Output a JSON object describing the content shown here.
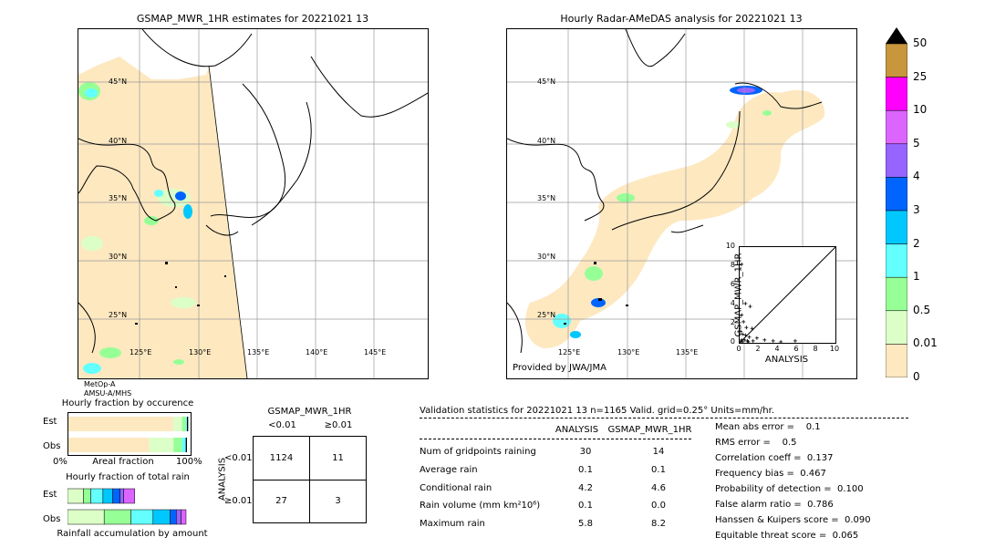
{
  "left_map": {
    "title": "GSMAP_MWR_1HR estimates for 20221021 13",
    "lat_labels": [
      "45°N",
      "40°N",
      "35°N",
      "30°N",
      "25°N"
    ],
    "lon_labels": [
      "125°E",
      "130°E",
      "135°E",
      "140°E",
      "145°E"
    ],
    "satellite_note": [
      "MetOp-A",
      "AMSU-A/MHS"
    ]
  },
  "right_map": {
    "title": "Hourly Radar-AMeDAS analysis for 20221021 13",
    "lat_labels": [
      "45°N",
      "40°N",
      "35°N",
      "30°N",
      "25°N"
    ],
    "lon_labels": [
      "125°E",
      "130°E",
      "135°E"
    ],
    "provider": "Provided by JWA/JMA"
  },
  "colorbar": {
    "labels": [
      "50",
      "25",
      "10",
      "5",
      "4",
      "3",
      "2",
      "1",
      "0.5",
      "0.01",
      "0"
    ],
    "colors": [
      "#c8963c",
      "#ff00ff",
      "#dc64ff",
      "#9664ff",
      "#0064ff",
      "#00c8ff",
      "#64ffff",
      "#96ff96",
      "#dcffc8",
      "#fde8c0"
    ],
    "over_color": "#000000"
  },
  "chart_data": [
    {
      "type": "scatter",
      "xlabel": "ANALYSIS",
      "ylabel": "GSMAP_MWR_1HR",
      "xlim": [
        0,
        10
      ],
      "ylim": [
        0,
        10
      ],
      "x_ticks": [
        "0",
        "2",
        "4",
        "6",
        "8",
        "10"
      ],
      "y_ticks": [
        "0",
        "2",
        "4",
        "6",
        "8",
        "10"
      ],
      "points": [
        [
          0.6,
          4.1
        ],
        [
          1.1,
          3.8
        ],
        [
          0.2,
          2.9
        ],
        [
          0.4,
          2.2
        ],
        [
          0.7,
          1.6
        ],
        [
          1.3,
          1.5
        ],
        [
          0.1,
          1.2
        ],
        [
          0.3,
          0.9
        ],
        [
          0.6,
          0.8
        ],
        [
          1.0,
          0.6
        ],
        [
          1.8,
          0.5
        ],
        [
          0.2,
          0.3
        ],
        [
          0.5,
          0.3
        ],
        [
          0.8,
          0.2
        ],
        [
          1.4,
          0.2
        ],
        [
          2.6,
          0.3
        ],
        [
          3.5,
          0.2
        ],
        [
          4.3,
          0.1
        ],
        [
          5.8,
          0.2
        ],
        [
          0.1,
          0.1
        ],
        [
          0.3,
          0.1
        ],
        [
          0.9,
          0.1
        ],
        [
          0.2,
          8.2
        ]
      ]
    },
    {
      "type": "bar",
      "title": "Hourly fraction by occurence",
      "categories": [
        "Est",
        "Obs"
      ],
      "x_ticks": [
        "0%",
        "Areal fraction",
        "100%"
      ],
      "series": [
        {
          "color": "#fde8c0",
          "values": [
            0.86,
            0.66
          ]
        },
        {
          "color": "#dcffc8",
          "values": [
            0.07,
            0.2
          ]
        },
        {
          "color": "#96ff96",
          "values": [
            0.03,
            0.07
          ]
        },
        {
          "color": "#64ffff",
          "values": [
            0.01,
            0.03
          ]
        },
        {
          "color": "#000000",
          "values": [
            0.01,
            0.01
          ]
        }
      ]
    },
    {
      "type": "bar",
      "title": "Hourly fraction of total rain",
      "categories": [
        "Est",
        "Obs"
      ],
      "xlabel": "Rainfall accumulation by amount",
      "series": [
        {
          "color": "#dcffc8",
          "values": [
            0.13,
            0.3
          ]
        },
        {
          "color": "#96ff96",
          "values": [
            0.06,
            0.22
          ]
        },
        {
          "color": "#64ffff",
          "values": [
            0.1,
            0.18
          ]
        },
        {
          "color": "#00c8ff",
          "values": [
            0.08,
            0.14
          ]
        },
        {
          "color": "#0064ff",
          "values": [
            0.06,
            0.05
          ]
        },
        {
          "color": "#9664ff",
          "values": [
            0.03,
            0.04
          ]
        },
        {
          "color": "#dc64ff",
          "values": [
            0.09,
            0.04
          ]
        }
      ]
    }
  ],
  "contingency": {
    "title": "GSMAP_MWR_1HR",
    "col_labels": [
      "<0.01",
      "≥0.01"
    ],
    "row_axis": "ANALYSIS",
    "row_labels": [
      "<0.01",
      "≥0.01"
    ],
    "cells": [
      [
        "1124",
        "11"
      ],
      [
        "27",
        "3"
      ]
    ]
  },
  "validation": {
    "header": "Validation statistics for 20221021 13  n=1165 Valid. grid=0.25° Units=mm/hr.",
    "col_analysis": "ANALYSIS",
    "col_gsmap": "GSMAP_MWR_1HR",
    "rows": [
      {
        "label": "Num of gridpoints raining",
        "a": "30",
        "g": "14"
      },
      {
        "label": "Average rain",
        "a": "0.1",
        "g": "0.1"
      },
      {
        "label": "Conditional rain",
        "a": "4.2",
        "g": "4.6"
      },
      {
        "label": "Rain volume (mm km²10⁶)",
        "a": "0.1",
        "g": "0.0"
      },
      {
        "label": "Maximum rain",
        "a": "5.8",
        "g": "8.2"
      }
    ],
    "scores": [
      "Mean abs error =    0.1",
      "RMS error =    0.5",
      "Correlation coeff =  0.137",
      "Frequency bias =  0.467",
      "Probability of detection =  0.100",
      "False alarm ratio =  0.786",
      "Hanssen & Kuipers score =  0.090",
      "Equitable threat score =  0.065"
    ]
  }
}
